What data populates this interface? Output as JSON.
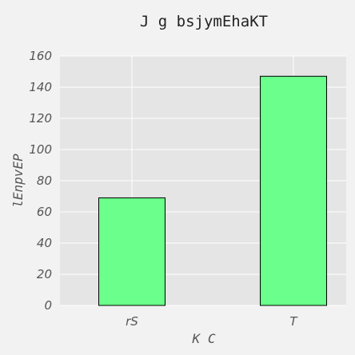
{
  "chart_data": {
    "type": "bar",
    "title": "J g bsjymEhaKT",
    "xlabel": "K  C",
    "ylabel": "lEnpvEP",
    "categories": [
      "rS",
      "T"
    ],
    "values": [
      69,
      147
    ],
    "ylim": [
      0,
      160
    ],
    "yticks": [
      0,
      20,
      40,
      60,
      80,
      100,
      120,
      140,
      160
    ],
    "grid": true,
    "bar_color": "#6bff8b",
    "background_color": "#e5e5e5"
  }
}
